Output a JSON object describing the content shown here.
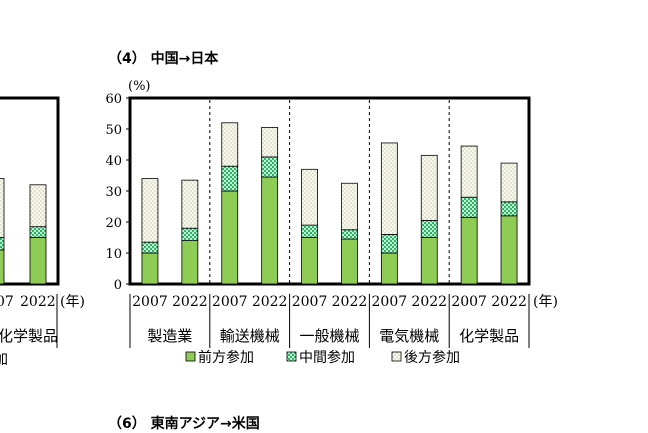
{
  "page": {
    "title": "（4） 中国→日本",
    "next_title": "（6） 東南アジア→米国"
  },
  "chart_data": {
    "type": "bar",
    "stacked": true,
    "ylabel": "(%)",
    "xunit": "(年)",
    "ylim": [
      0,
      60
    ],
    "yticks": [
      0,
      10,
      20,
      30,
      40,
      50,
      60
    ],
    "groups": [
      "製造業",
      "輸送機械",
      "一般機械",
      "電気機械",
      "化学製品"
    ],
    "years": [
      "2007",
      "2022"
    ],
    "categories": [
      "製造業 2007",
      "製造業 2022",
      "輸送機械 2007",
      "輸送機械 2022",
      "一般機械 2007",
      "一般機械 2022",
      "電気機械 2007",
      "電気機械 2022",
      "化学製品 2007",
      "化学製品 2022"
    ],
    "series": [
      {
        "name": "前方参加",
        "color": "#8fcc55",
        "values": [
          10,
          14,
          30,
          34.5,
          15,
          14.5,
          10,
          15,
          21.5,
          22
        ]
      },
      {
        "name": "中間参加",
        "color": "#2fb36a",
        "values": [
          3.5,
          4,
          8,
          6.5,
          4,
          3,
          6,
          5.5,
          6.5,
          4.5
        ]
      },
      {
        "name": "後方参加",
        "color": "#e4e8cd",
        "values": [
          20.5,
          15.5,
          14,
          9.5,
          18,
          15,
          29.5,
          21,
          16.5,
          12.5
        ]
      }
    ],
    "partial_left_chart": {
      "visible_groups": [
        "化学製品"
      ],
      "visible_years": [
        "07",
        "2022"
      ],
      "xunit": "(年)",
      "legend_fragment": "加"
    },
    "grid": false,
    "legend_position": "bottom"
  }
}
